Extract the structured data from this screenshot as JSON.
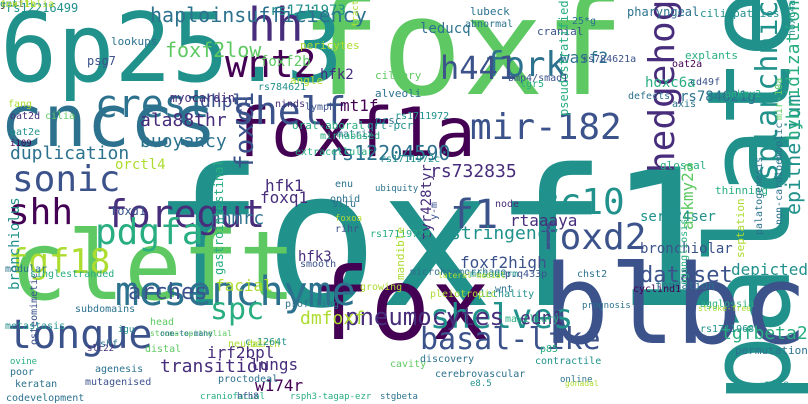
{
  "palette": {
    "background": "#ffffff",
    "colors": [
      "#440154",
      "#472d7b",
      "#3b528b",
      "#2c728e",
      "#21918c",
      "#28ae80",
      "#5ec962",
      "#addc30",
      "#fde725"
    ]
  },
  "words": [
    {
      "text": "foxf1",
      "c": 4
    },
    {
      "text": "foxf",
      "c": 6
    },
    {
      "text": "6p25.3",
      "c": 4
    },
    {
      "text": "palate",
      "c": 4
    },
    {
      "text": "cleft",
      "c": 6
    },
    {
      "text": "blbc",
      "c": 2
    },
    {
      "text": "fox",
      "c": 0
    },
    {
      "text": "foxf1a",
      "c": 0
    },
    {
      "text": "cnccs",
      "c": 3
    },
    {
      "text": "mesenchyme",
      "c": 3
    },
    {
      "text": "tongue",
      "c": 2
    },
    {
      "text": "hedgehog",
      "c": 1
    },
    {
      "text": "foregut",
      "c": 1
    },
    {
      "text": "mir-182",
      "c": 2
    },
    {
      "text": "shelf",
      "c": 2
    },
    {
      "text": "wnt2",
      "c": 0
    },
    {
      "text": "crest",
      "c": 3
    },
    {
      "text": "hh",
      "c": 1
    },
    {
      "text": "fork",
      "c": 3
    },
    {
      "text": "h441",
      "c": 2
    },
    {
      "text": "cc10",
      "c": 4
    },
    {
      "text": "foxd2",
      "c": 2
    },
    {
      "text": "f1",
      "c": 2
    },
    {
      "text": "sonic",
      "c": 2
    },
    {
      "text": "shh",
      "c": 0
    },
    {
      "text": "pdgfa",
      "c": 5
    },
    {
      "text": "fgf18",
      "c": 7
    },
    {
      "text": "foxc1",
      "c": 2
    },
    {
      "text": "shelves",
      "c": 4
    },
    {
      "text": "basal-like",
      "c": 2
    },
    {
      "text": "splanchnic",
      "c": 4
    },
    {
      "text": "spc",
      "c": 5
    },
    {
      "text": "pneumocytes",
      "c": 1
    },
    {
      "text": "arches",
      "c": 2
    },
    {
      "text": "dataset",
      "c": 2
    },
    {
      "text": "haploinsufficiency",
      "c": 3
    },
    {
      "text": "foxf2low",
      "c": 6
    },
    {
      "text": "epithelium",
      "c": 4
    },
    {
      "text": "hybridization",
      "c": 5
    },
    {
      "text": "duplication",
      "c": 3
    },
    {
      "text": "buoyancy",
      "c": 3
    },
    {
      "text": "ala88thr",
      "c": 1
    },
    {
      "text": "rs12204590",
      "c": 3
    },
    {
      "text": "rs732835",
      "c": 1
    },
    {
      "text": "stringency",
      "c": 4
    },
    {
      "text": "tgfbeta2",
      "c": 5
    },
    {
      "text": "edn1",
      "c": 1
    },
    {
      "text": "dmfoxf",
      "c": 7
    },
    {
      "text": "transition",
      "c": 1
    },
    {
      "text": "irf2bpl",
      "c": 1
    },
    {
      "text": "lungs",
      "c": 1
    },
    {
      "text": "w174r",
      "c": 0
    },
    {
      "text": "nhmrc",
      "c": 3
    },
    {
      "text": "facial",
      "c": 7
    },
    {
      "text": "ankmy2a",
      "c": 6
    },
    {
      "text": "foxf2high",
      "c": 2
    },
    {
      "text": "hfk1",
      "c": 1
    },
    {
      "text": "foxq1",
      "c": 1
    },
    {
      "text": "dhplc",
      "c": 2
    },
    {
      "text": "mt1f",
      "c": 0
    },
    {
      "text": "hfk2",
      "c": 1
    },
    {
      "text": "rs1711973",
      "c": 4
    },
    {
      "text": "rs12216499",
      "c": 4
    },
    {
      "text": "myocardin",
      "c": 1
    },
    {
      "text": "foxf2b",
      "c": 6
    },
    {
      "text": "leducq",
      "c": 3
    },
    {
      "text": "wasf2",
      "c": 3
    },
    {
      "text": "hoxc6a",
      "c": 5
    },
    {
      "text": "rs784621g",
      "c": 3
    },
    {
      "text": "rtaaaya",
      "c": 1
    },
    {
      "text": "orctl4",
      "c": 7
    },
    {
      "text": "gastrointestinal",
      "c": 5
    },
    {
      "text": "tyr428tyr",
      "c": 1
    },
    {
      "text": "ser424ser",
      "c": 4
    },
    {
      "text": "bronchiolar",
      "c": 2
    },
    {
      "text": "bronchiolus",
      "c": 4
    },
    {
      "text": "foxd1",
      "c": 2
    },
    {
      "text": "hfk3",
      "c": 1
    },
    {
      "text": "depicted",
      "c": 4
    },
    {
      "text": "cerebrovascular",
      "c": 3
    },
    {
      "text": "pharyngeal",
      "c": 3
    },
    {
      "text": "ciliopathies",
      "c": 4
    },
    {
      "text": "ciliary",
      "c": 6
    },
    {
      "text": "alveoli",
      "c": 3
    },
    {
      "text": "explants",
      "c": 5
    },
    {
      "text": "angle",
      "c": 7
    },
    {
      "text": "pericytes",
      "c": 7
    },
    {
      "text": "lubeck",
      "c": 3
    },
    {
      "text": "cranial",
      "c": 2
    },
    {
      "text": "abnormal",
      "c": 3
    },
    {
      "text": "oral-aboral",
      "c": 5
    },
    {
      "text": "extracellular",
      "c": 5
    },
    {
      "text": "matrix",
      "c": 3
    },
    {
      "text": "lymph",
      "c": 2
    },
    {
      "text": "ninds",
      "c": 1
    },
    {
      "text": "lookups",
      "c": 3
    },
    {
      "text": "psg7",
      "c": 2
    },
    {
      "text": "prsc",
      "c": 3
    },
    {
      "text": "qrt-pcr",
      "c": 4
    },
    {
      "text": "pseudostratified",
      "c": 5
    },
    {
      "text": "bmp4/smad1",
      "c": 2
    },
    {
      "text": "defects",
      "c": 3
    },
    {
      "text": "fondation",
      "c": 3
    },
    {
      "text": "glossal",
      "c": 5
    },
    {
      "text": "thinning",
      "c": 5
    },
    {
      "text": "septation",
      "c": 7
    },
    {
      "text": "non-cardioembolic",
      "c": 3
    },
    {
      "text": "palatogenesis",
      "c": 3
    },
    {
      "text": "agangliosis",
      "c": 5
    },
    {
      "text": "permutation",
      "c": 3
    },
    {
      "text": "mtle",
      "c": 4
    },
    {
      "text": "oat2a",
      "c": 0
    },
    {
      "text": "axis",
      "c": 3
    },
    {
      "text": "ankmy2",
      "c": 5
    },
    {
      "text": "hoxc4a",
      "c": 4
    },
    {
      "text": "25*g",
      "c": 3
    },
    {
      "text": "tract",
      "c": 7
    },
    {
      "text": "rs784621",
      "c": 4
    },
    {
      "text": "rs784621a",
      "c": 2
    },
    {
      "text": "rs1711972",
      "c": 4
    },
    {
      "text": "rs1711972c",
      "c": 4
    },
    {
      "text": "rs1711972a",
      "c": 5
    },
    {
      "text": "rs1711968",
      "c": 4
    },
    {
      "text": "codevelopment",
      "c": 3
    },
    {
      "text": "lethality",
      "c": 4
    },
    {
      "text": "microhaemorrhage",
      "c": 3
    },
    {
      "text": "mandible",
      "c": 7
    },
    {
      "text": "profiling",
      "c": 3
    },
    {
      "text": "smooth",
      "c": 2
    },
    {
      "text": "proctodeal",
      "c": 3
    },
    {
      "text": "mutagenised",
      "c": 2
    },
    {
      "text": "subdomains",
      "c": 3
    },
    {
      "text": "agenesis",
      "c": 3
    },
    {
      "text": "agglossia",
      "c": 5
    },
    {
      "text": "craniofacial",
      "c": 5
    },
    {
      "text": "osteomimetic",
      "c": 2
    },
    {
      "text": "metastasis",
      "c": 4
    },
    {
      "text": "modular",
      "c": 3
    },
    {
      "text": "singlestranded",
      "c": 5
    },
    {
      "text": "mesoderm",
      "c": 4
    },
    {
      "text": "p.q433p",
      "c": 2
    },
    {
      "text": "chst2",
      "c": 3
    },
    {
      "text": "cyclind1",
      "c": 0
    },
    {
      "text": "contractile",
      "c": 4
    },
    {
      "text": "discovery",
      "c": 3
    },
    {
      "text": "maxillary",
      "c": 5
    },
    {
      "text": "cavity",
      "c": 6
    },
    {
      "text": "growing",
      "c": 7
    },
    {
      "text": "birth",
      "c": 7
    },
    {
      "text": "poor",
      "c": 3
    },
    {
      "text": "distal",
      "c": 6
    },
    {
      "text": "head",
      "c": 6
    },
    {
      "text": "shf",
      "c": 3
    },
    {
      "text": "keratan",
      "c": 3
    },
    {
      "text": "online",
      "c": 3
    },
    {
      "text": "e8.5",
      "c": 4
    },
    {
      "text": "hfh8",
      "c": 2
    },
    {
      "text": "rsph3-tagap-ezr",
      "c": 5
    },
    {
      "text": "stgbeta",
      "c": 3
    },
    {
      "text": "c.1264t",
      "c": 4
    },
    {
      "text": "enu",
      "c": 3
    },
    {
      "text": "ophid",
      "c": 3
    },
    {
      "text": "rihr",
      "c": 2
    },
    {
      "text": "slc22",
      "c": 1
    },
    {
      "text": "igu",
      "c": 4
    },
    {
      "text": "situ",
      "c": 3
    },
    {
      "text": "node",
      "c": 1
    },
    {
      "text": "wnt",
      "c": 3
    },
    {
      "text": "p85",
      "c": 5
    },
    {
      "text": "prognosis",
      "c": 3
    },
    {
      "text": "lgr5",
      "c": 5
    },
    {
      "text": "cd49f",
      "c": 2
    },
    {
      "text": "fang",
      "c": 7
    },
    {
      "text": "cilia",
      "c": 6
    },
    {
      "text": "oat2d",
      "c": 1
    },
    {
      "text": "oat2e",
      "c": 4
    },
    {
      "text": "i109",
      "c": 0
    },
    {
      "text": "mirnabased",
      "c": 5
    },
    {
      "text": "pleiotropic",
      "c": 7
    },
    {
      "text": "mir-10a",
      "c": 6
    },
    {
      "text": "y-m",
      "c": 2
    },
    {
      "text": "stroma-epithelial",
      "c": 6
    },
    {
      "text": "one-to-many",
      "c": 3
    },
    {
      "text": "lateral-medial",
      "c": 7
    },
    {
      "text": "stroke-free",
      "c": 7
    },
    {
      "text": "gonadal",
      "c": 7
    },
    {
      "text": "ubiquity",
      "c": 3
    },
    {
      "text": "neural",
      "c": 7
    },
    {
      "text": "ovine",
      "c": 5
    },
    {
      "text": "foxoa",
      "c": 7
    },
    {
      "text": "genitalia",
      "c": 7
    },
    {
      "text": "j.-t",
      "c": 1
    },
    {
      "text": "emt",
      "c": 4
    },
    {
      "text": "foxf1b",
      "c": 7
    }
  ]
}
